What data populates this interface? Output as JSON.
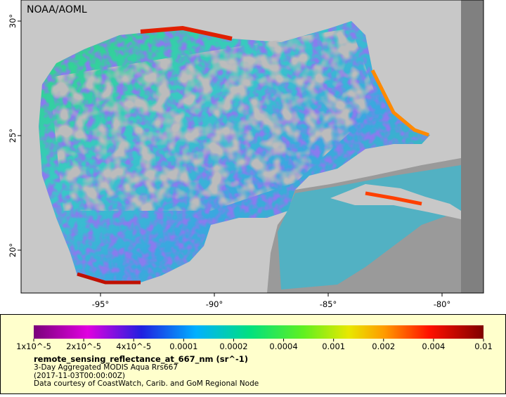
{
  "map": {
    "label": "NOAA/AOML",
    "lon_ticks": [
      {
        "value": -95,
        "label": "-95°"
      },
      {
        "value": -90,
        "label": "-90°"
      },
      {
        "value": -85,
        "label": "-85°"
      },
      {
        "value": -80,
        "label": "-80°"
      }
    ],
    "lat_ticks": [
      {
        "value": 30,
        "label": "30°"
      },
      {
        "value": 25,
        "label": "25°"
      },
      {
        "value": 20,
        "label": "20°"
      }
    ]
  },
  "colorbar": {
    "ticks": [
      {
        "value": 1e-05,
        "label": "1x10^-5"
      },
      {
        "value": 2e-05,
        "label": "2x10^-5"
      },
      {
        "value": 4e-05,
        "label": "4x10^-5"
      },
      {
        "value": 0.0001,
        "label": "0.0001"
      },
      {
        "value": 0.0002,
        "label": "0.0002"
      },
      {
        "value": 0.0004,
        "label": "0.0004"
      },
      {
        "value": 0.001,
        "label": "0.001"
      },
      {
        "value": 0.002,
        "label": "0.002"
      },
      {
        "value": 0.004,
        "label": "0.004"
      },
      {
        "value": 0.01,
        "label": "0.01"
      }
    ]
  },
  "caption": {
    "title": "remote_sensing_reflectance_at_667_nm (sr^-1)",
    "lines": [
      "3-Day Aggregated MODIS Aqua Rrs667",
      "(2017-11-03T00:00:00Z)",
      "Data courtesy of CoastWatch, Carib. and GoM Regional Node"
    ]
  }
}
